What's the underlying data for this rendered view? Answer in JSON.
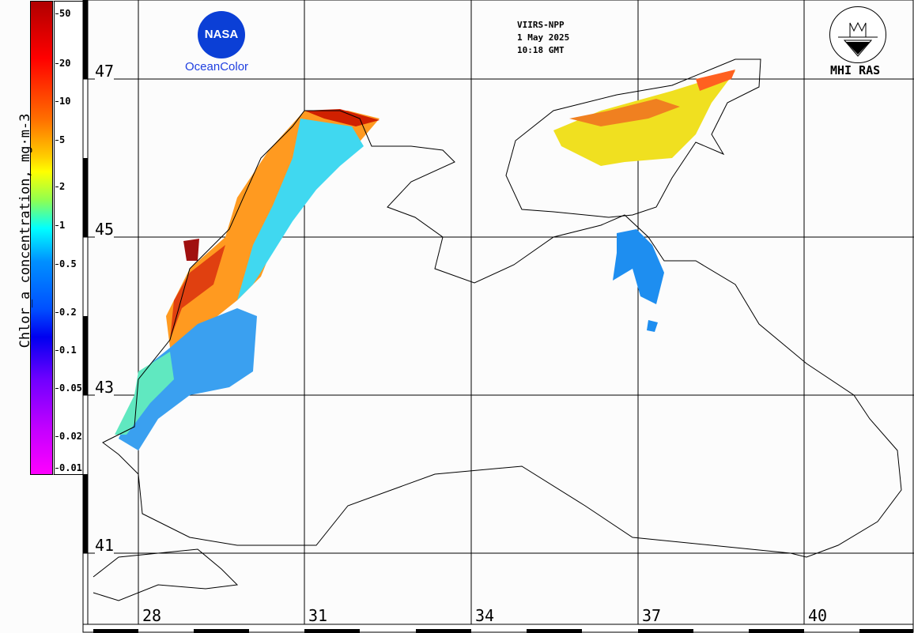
{
  "colorbar": {
    "title": "Chlor_a concentration, mg·m-3",
    "ticks": [
      "50",
      "20",
      "10",
      "5",
      "2",
      "1",
      "0.5",
      "0.2",
      "0.1",
      "0.05",
      "0.02",
      "0.01"
    ]
  },
  "header": {
    "sensor": "VIIRS-NPP",
    "date": "1 May 2025",
    "time": "10:18 GMT"
  },
  "logos": {
    "nasa": "NASA",
    "oceancolor": "OceanColor",
    "mhi": "MHI RAS"
  },
  "grid": {
    "latitudes": [
      "47",
      "45",
      "43",
      "41"
    ],
    "longitudes": [
      "28",
      "31",
      "34",
      "37",
      "40"
    ]
  },
  "colors": {
    "high": "#b00000",
    "mid": "#ffff00",
    "low": "#00a0ff",
    "min": "#ff00ff"
  }
}
